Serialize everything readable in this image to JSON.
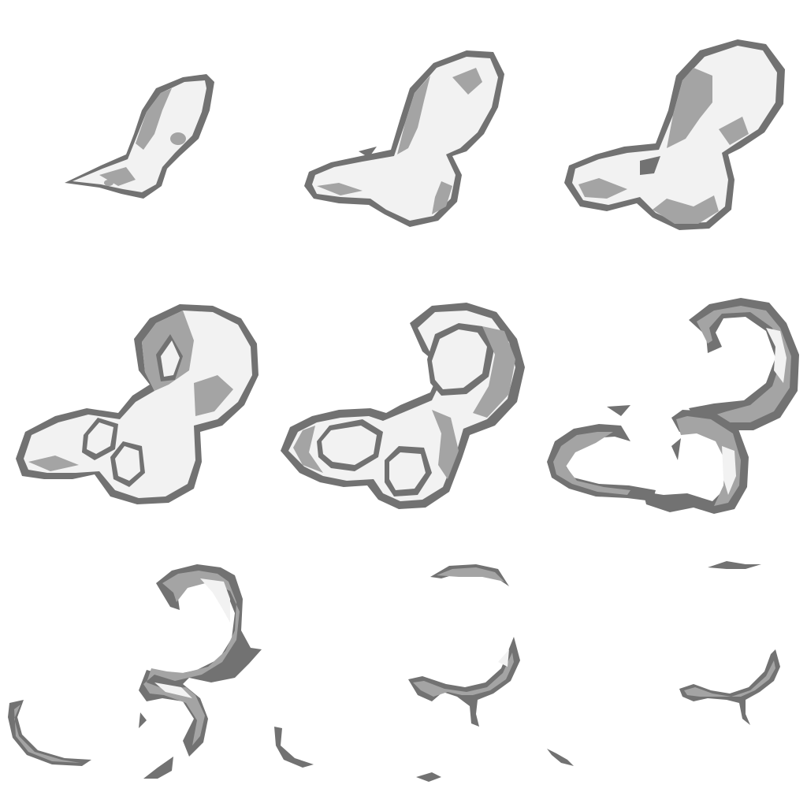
{
  "sheet": {
    "type": "sprite-sheet",
    "subject": "smoke-puff-dissipate-animation",
    "grid_columns": 3,
    "grid_rows": 3,
    "frame_count": 9,
    "background_color": "#ffffff",
    "rim_color": "#727272",
    "shade_color": "#a4a4a4",
    "highlight_color": "#f2f2f2"
  },
  "frames": [
    {
      "index": 1,
      "stage": "forming"
    },
    {
      "index": 2,
      "stage": "growing"
    },
    {
      "index": 3,
      "stage": "full"
    },
    {
      "index": 4,
      "stage": "hollowing"
    },
    {
      "index": 5,
      "stage": "breaking-up"
    },
    {
      "index": 6,
      "stage": "ring-fragments"
    },
    {
      "index": 7,
      "stage": "dissipating"
    },
    {
      "index": 8,
      "stage": "wisps"
    },
    {
      "index": 9,
      "stage": "vanishing"
    }
  ]
}
